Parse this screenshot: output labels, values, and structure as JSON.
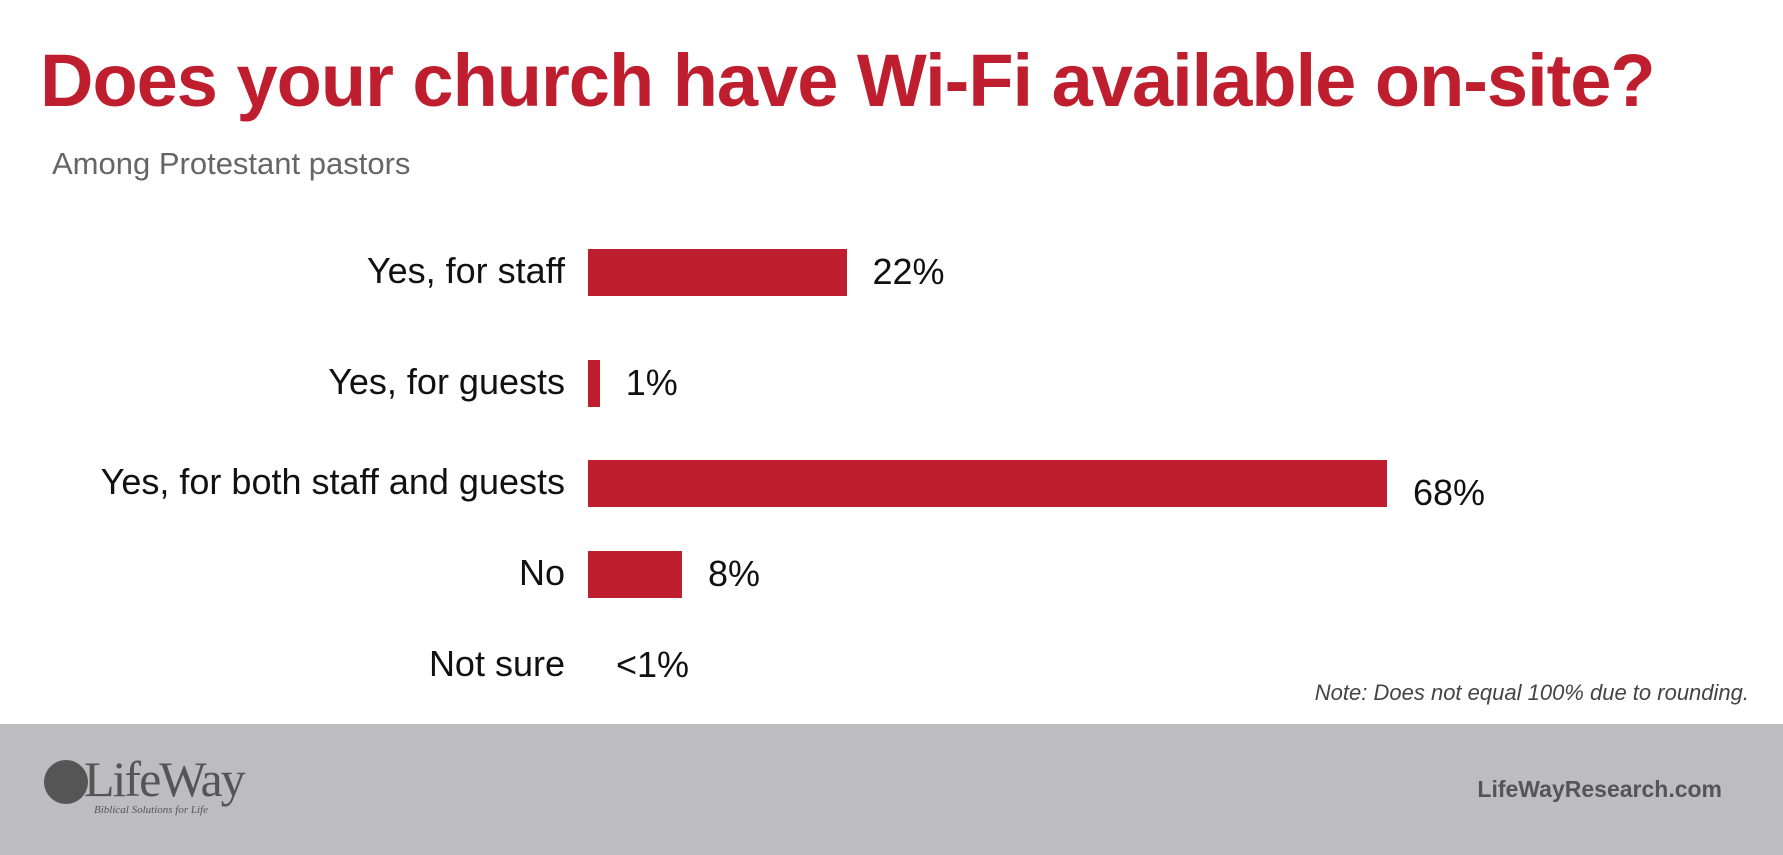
{
  "chart_data": {
    "type": "bar",
    "orientation": "horizontal",
    "title": "Does your church have Wi-Fi available on-site?",
    "subtitle": "Among Protestant pastors",
    "categories": [
      "Yes, for staff",
      "Yes, for guests",
      "Yes, for both staff and guests",
      "No",
      "Not sure"
    ],
    "values": [
      22,
      1,
      68,
      8,
      0.3
    ],
    "data_labels": [
      "22%",
      "1%",
      "68%",
      "8%",
      "<1%"
    ],
    "unit": "%",
    "grid": false,
    "bar_color": "#be1e2d",
    "note": "Note: Does not equal 100% due to rounding."
  },
  "footer": {
    "logo_text": "LifeWay",
    "logo_tagline": "Biblical Solutions for Life",
    "site": "LifeWayResearch.com",
    "background": "#bdbdbf"
  }
}
